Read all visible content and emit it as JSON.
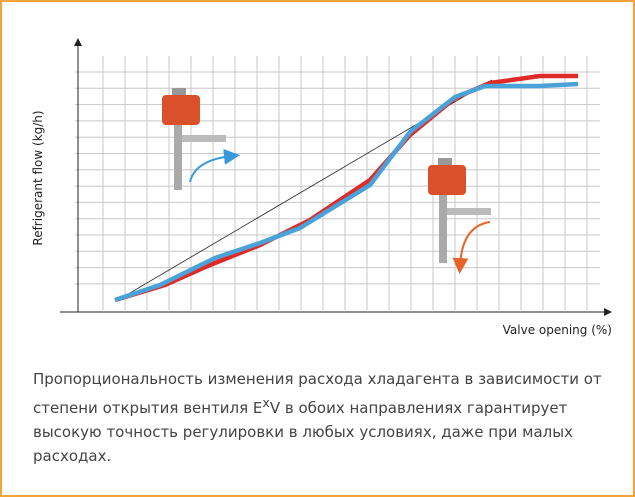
{
  "figure": {
    "y_axis_label": "Refrigerant flow (kg/h)",
    "x_axis_label": "Valve opening (%)"
  },
  "caption": "Пропорциональность изменения расхода хладагента в зависимости от степени открытия вентиля E<sup>x</sup>V в обоих направлениях гарантирует высокую точность регулировки в любых условиях, даже при малых расходах."
}
